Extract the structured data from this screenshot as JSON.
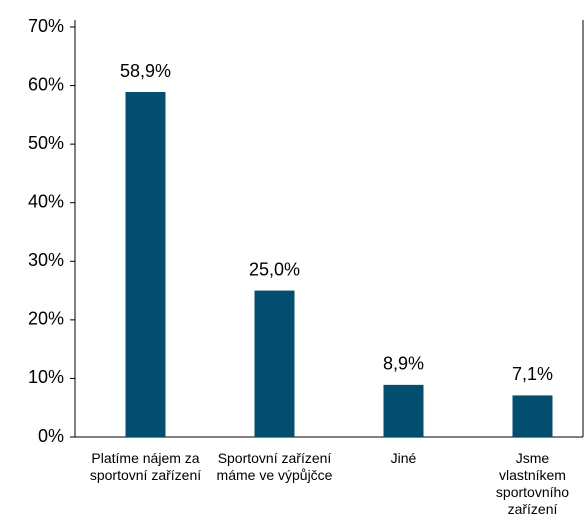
{
  "chart_data": {
    "type": "bar",
    "categories": [
      "Platíme nájem za sportovní zařízení",
      "Sportovní zařízení máme ve výpůjčce",
      "Jiné",
      "Jsme vlastníkem sportovního zařízení"
    ],
    "values": [
      58.9,
      25.0,
      8.9,
      7.1
    ],
    "value_labels": [
      "58,9%",
      "25,0%",
      "8,9%",
      "7,1%"
    ],
    "color": "#034e6e",
    "ylim": [
      0,
      70
    ],
    "yticks": [
      {
        "value": 0,
        "label": "0%"
      },
      {
        "value": 10,
        "label": "10%"
      },
      {
        "value": 20,
        "label": "20%"
      },
      {
        "value": 30,
        "label": "30%"
      },
      {
        "value": 40,
        "label": "40%"
      },
      {
        "value": 50,
        "label": "50%"
      },
      {
        "value": 60,
        "label": "60%"
      },
      {
        "value": 70,
        "label": "70%"
      }
    ],
    "grid": false
  }
}
